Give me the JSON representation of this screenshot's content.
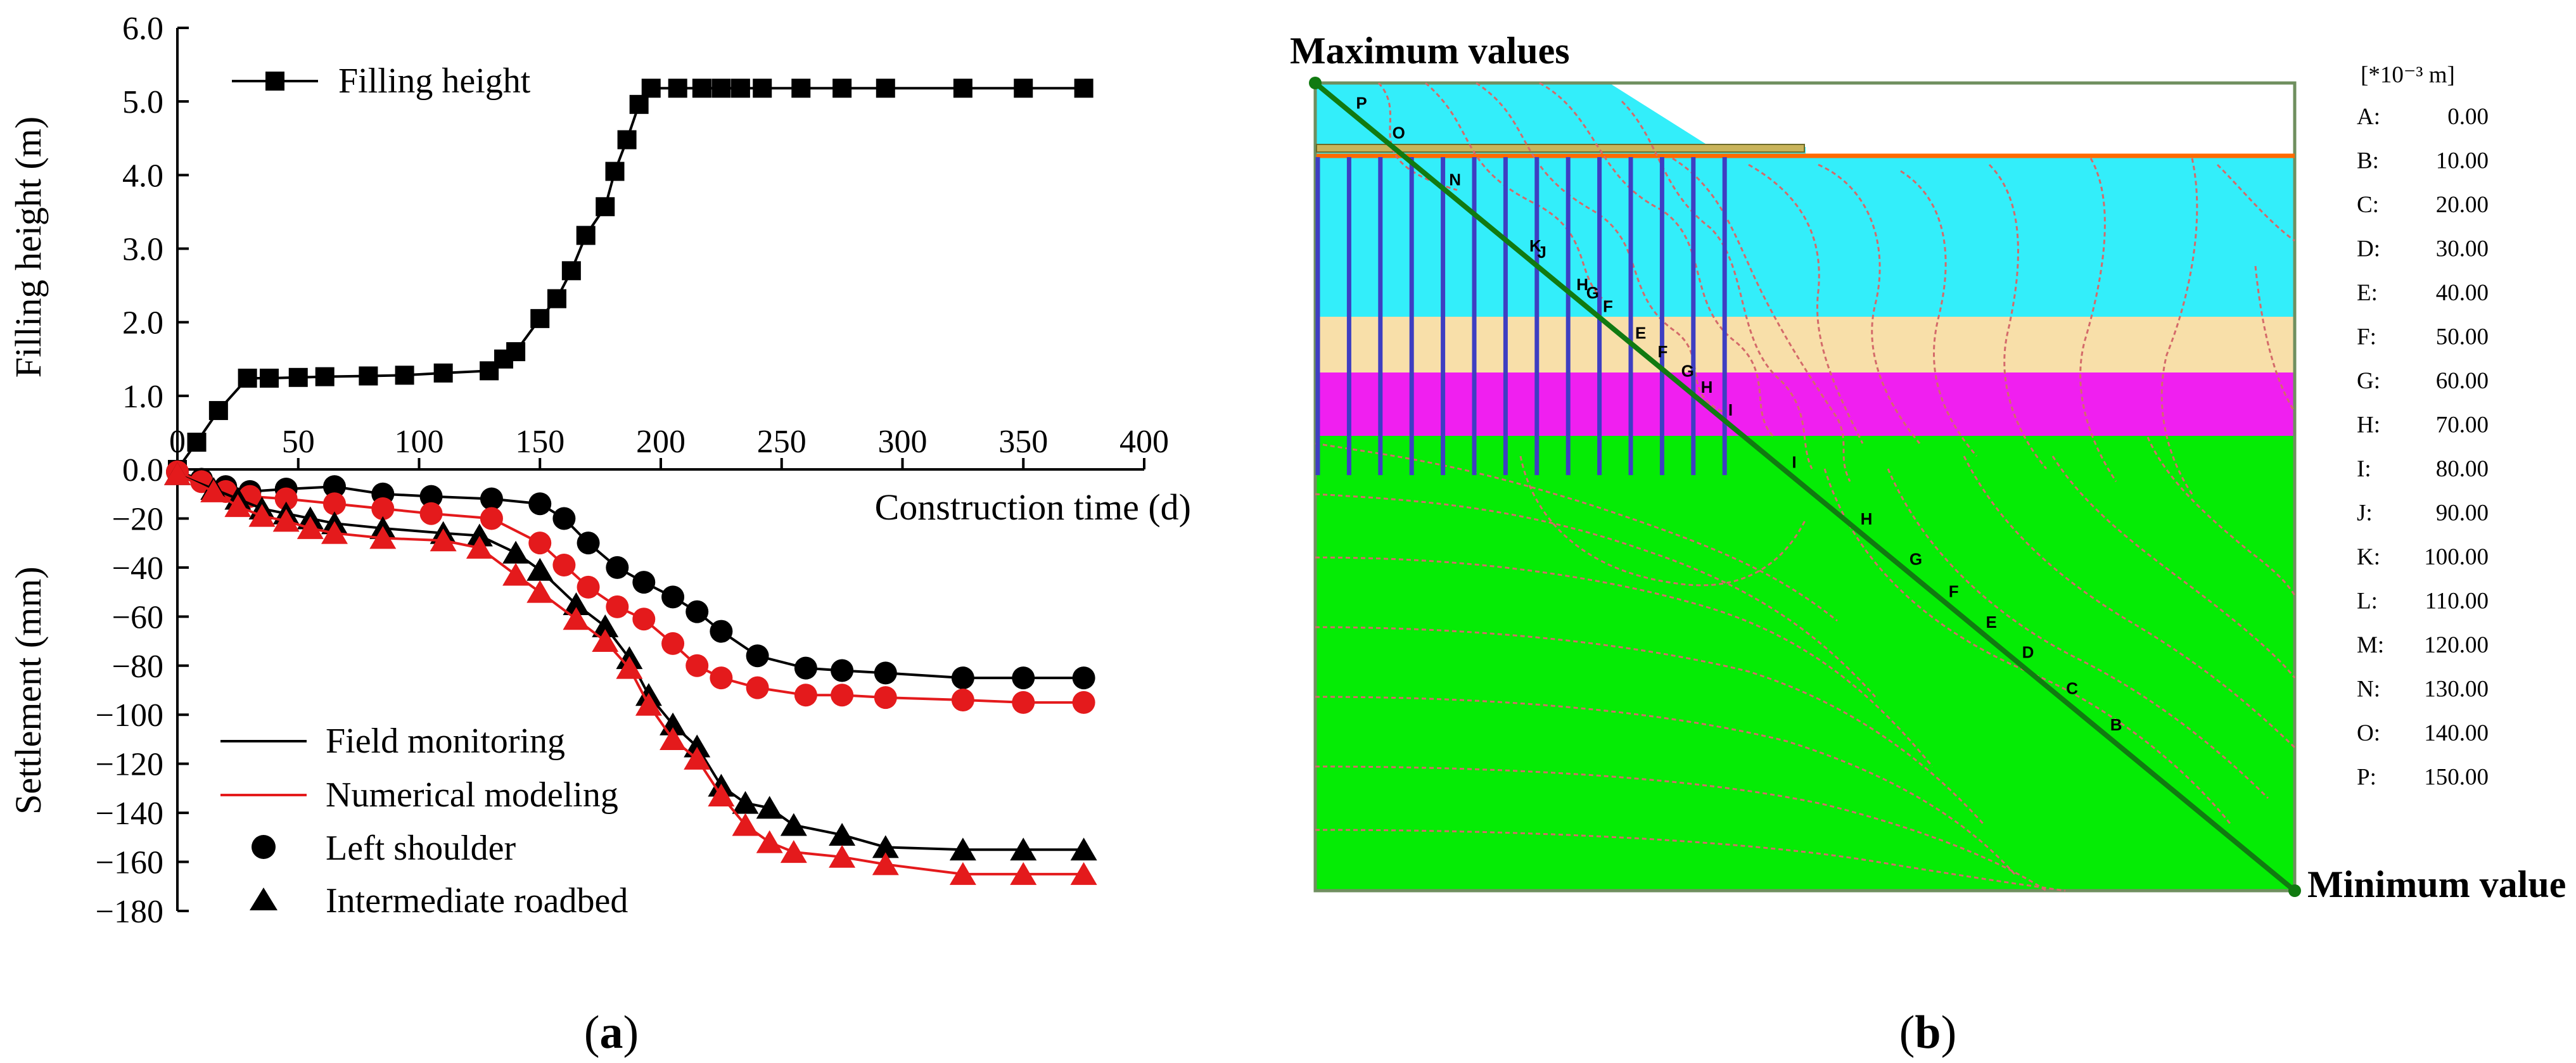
{
  "chart_data": [
    {
      "panel": "(a)",
      "type": "line",
      "top": {
        "ylabel": "Filling height (m)",
        "yticks": [
          "0.0",
          "1.0",
          "2.0",
          "3.0",
          "4.0",
          "5.0",
          "6.0"
        ],
        "ylim": [
          0,
          6
        ],
        "series": [
          {
            "name": "Filling height",
            "marker": "square",
            "color": "#000000",
            "x": [
              0,
              8,
              17,
              29,
              38,
              50,
              61,
              79,
              94,
              110,
              129,
              135,
              140,
              150,
              157,
              163,
              169,
              177,
              181,
              186,
              191,
              196,
              207,
              217,
              225,
              233,
              242,
              258,
              275,
              293,
              325,
              350,
              375
            ],
            "y": [
              0,
              0.37,
              0.8,
              1.24,
              1.24,
              1.25,
              1.26,
              1.27,
              1.28,
              1.31,
              1.34,
              1.5,
              1.6,
              2.05,
              2.32,
              2.7,
              3.18,
              3.57,
              4.05,
              4.48,
              4.96,
              5.18,
              5.18,
              5.18,
              5.18,
              5.18,
              5.18,
              5.18,
              5.18,
              5.18,
              5.18,
              5.18,
              5.18
            ]
          }
        ]
      },
      "bottom": {
        "ylabel": "Settlement (mm)",
        "yticks": [
          "0.0",
          "−20",
          "−40",
          "−60",
          "−80",
          "−100",
          "−120",
          "−140",
          "−160",
          "−180"
        ],
        "ylim": [
          -180,
          0
        ],
        "series": [
          {
            "name": "Left shoulder — Field monitoring",
            "color": "#000000",
            "marker": "circle",
            "x": [
              0,
              10,
              20,
              30,
              45,
              65,
              85,
              105,
              130,
              150,
              160,
              170,
              182,
              193,
              205,
              215,
              225,
              240,
              260,
              275,
              293,
              325,
              350,
              375
            ],
            "y": [
              -1,
              -4,
              -7,
              -9,
              -8,
              -7,
              -10,
              -11,
              -12,
              -14,
              -20,
              -30,
              -40,
              -46,
              -52,
              -58,
              -66,
              -76,
              -81,
              -82,
              -83,
              -85,
              -85,
              -85
            ]
          },
          {
            "name": "Left shoulder — Numerical modeling",
            "color": "#e41a1c",
            "marker": "circle",
            "x": [
              0,
              10,
              20,
              30,
              45,
              65,
              85,
              105,
              130,
              150,
              160,
              170,
              182,
              193,
              205,
              215,
              225,
              240,
              260,
              275,
              293,
              325,
              350,
              375
            ],
            "y": [
              -1,
              -5,
              -9,
              -11,
              -12,
              -14,
              -16,
              -18,
              -20,
              -30,
              -39,
              -48,
              -56,
              -61,
              -71,
              -80,
              -85,
              -89,
              -92,
              -92,
              -93,
              -94,
              -95,
              -95
            ]
          },
          {
            "name": "Intermediate roadbed — Field monitoring",
            "color": "#000000",
            "marker": "triangle",
            "x": [
              0,
              15,
              25,
              35,
              45,
              55,
              65,
              85,
              110,
              125,
              140,
              150,
              165,
              177,
              187,
              195,
              205,
              215,
              225,
              235,
              245,
              255,
              275,
              293,
              325,
              350,
              375
            ],
            "y": [
              -2,
              -8,
              -12,
              -16,
              -18,
              -20,
              -22,
              -24,
              -26,
              -27,
              -34,
              -41,
              -55,
              -64,
              -77,
              -92,
              -104,
              -113,
              -129,
              -136,
              -138,
              -145,
              -149,
              -154,
              -155,
              -155,
              -155
            ]
          },
          {
            "name": "Intermediate roadbed — Numerical modeling",
            "color": "#e41a1c",
            "marker": "triangle",
            "x": [
              0,
              15,
              25,
              35,
              45,
              55,
              65,
              85,
              110,
              125,
              140,
              150,
              165,
              177,
              187,
              195,
              205,
              215,
              225,
              235,
              245,
              255,
              275,
              293,
              325,
              350,
              375
            ],
            "y": [
              -2,
              -9,
              -15,
              -19,
              -21,
              -24,
              -26,
              -28,
              -29,
              -32,
              -43,
              -50,
              -61,
              -70,
              -81,
              -96,
              -110,
              -118,
              -133,
              -145,
              -152,
              -156,
              -158,
              -161,
              -165,
              -165,
              -165
            ]
          }
        ]
      },
      "xlabel": "Construction time (d)",
      "xticks": [
        "0",
        "50",
        "100",
        "150",
        "200",
        "250",
        "300",
        "350",
        "400"
      ],
      "xlim": [
        0,
        400
      ],
      "legend": {
        "top": [
          "Filling height"
        ],
        "bottom": [
          "Field monitoring",
          "Numerical modeling",
          "Left shoulder",
          "Intermediate roadbed"
        ],
        "placement": "top-left / bottom-left"
      }
    },
    {
      "panel": "(b)",
      "type": "contour",
      "max_label": "Maximum values",
      "min_label": "Minimum value",
      "unit": "[*10⁻³ m]",
      "levels": [
        {
          "key": "A:",
          "value": "0.00"
        },
        {
          "key": "B:",
          "value": "10.00"
        },
        {
          "key": "C:",
          "value": "20.00"
        },
        {
          "key": "D:",
          "value": "30.00"
        },
        {
          "key": "E:",
          "value": "40.00"
        },
        {
          "key": "F:",
          "value": "50.00"
        },
        {
          "key": "G:",
          "value": "60.00"
        },
        {
          "key": "H:",
          "value": "70.00"
        },
        {
          "key": "I:",
          "value": "80.00"
        },
        {
          "key": "J:",
          "value": "90.00"
        },
        {
          "key": "K:",
          "value": "100.00"
        },
        {
          "key": "L:",
          "value": "110.00"
        },
        {
          "key": "M:",
          "value": "120.00"
        },
        {
          "key": "N:",
          "value": "130.00"
        },
        {
          "key": "O:",
          "value": "140.00"
        },
        {
          "key": "P:",
          "value": "150.00"
        }
      ],
      "section_labels": [
        "P",
        "O",
        "N",
        "K",
        "J",
        "H",
        "G",
        "F",
        "E",
        "F",
        "G",
        "H",
        "I",
        "I",
        "H",
        "G",
        "F",
        "E",
        "D",
        "C",
        "B"
      ],
      "layer_colors": {
        "embankment": "#33eefa",
        "sand": "#f8dfa9",
        "clay": "#f01ff0",
        "foundation": "#05ec05",
        "piles": "#3e3ec2",
        "contour": "#d46a6a",
        "section_line": "#117a11"
      }
    }
  ]
}
